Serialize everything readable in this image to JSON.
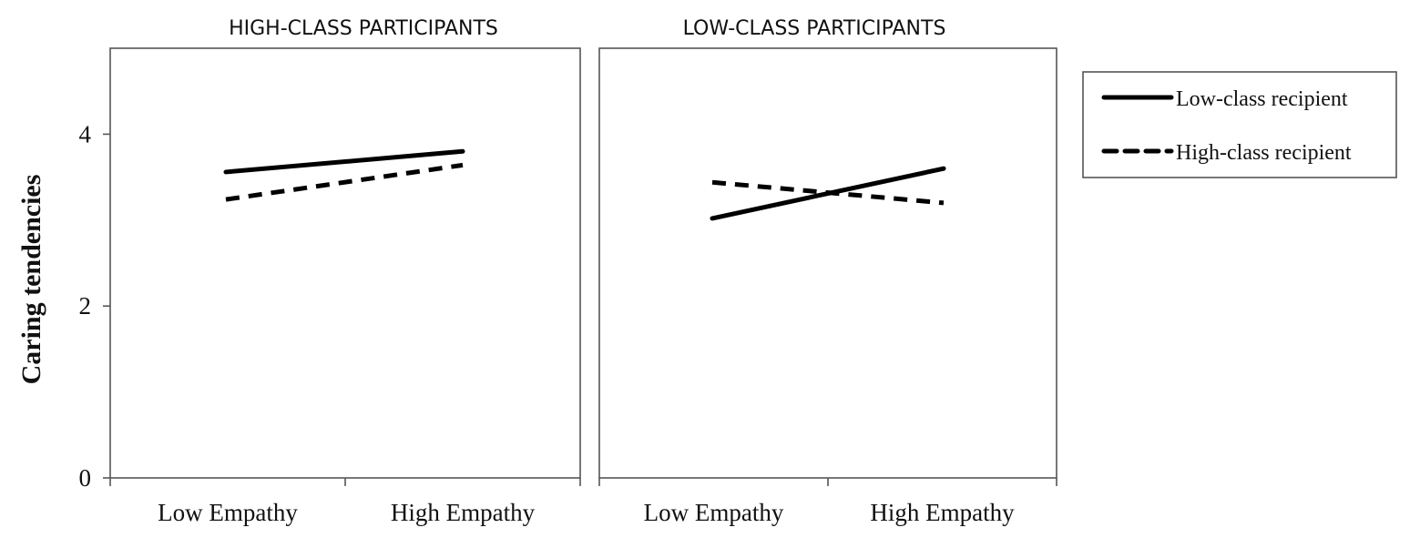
{
  "chart_data": {
    "type": "line",
    "ylabel": "Caring tendencies",
    "ylim": [
      0,
      5
    ],
    "yticks": [
      0,
      2,
      4
    ],
    "categories": [
      "Low Empathy",
      "High Empathy"
    ],
    "legend": {
      "placement": "right",
      "entries": [
        {
          "name": "Low-class recipient",
          "style": "solid"
        },
        {
          "name": "High-class recipient",
          "style": "dashed"
        }
      ]
    },
    "colors": {
      "line": "#000000",
      "frame": "#555555",
      "text": "#111111"
    },
    "panels": [
      {
        "title": "HIGH-CLASS PARTICIPANTS",
        "series": [
          {
            "name": "Low-class recipient",
            "style": "solid",
            "values": [
              3.56,
              3.8
            ]
          },
          {
            "name": "High-class recipient",
            "style": "dashed",
            "values": [
              3.24,
              3.64
            ]
          }
        ]
      },
      {
        "title": "LOW-CLASS PARTICIPANTS",
        "series": [
          {
            "name": "Low-class recipient",
            "style": "solid",
            "values": [
              3.02,
              3.6
            ]
          },
          {
            "name": "High-class recipient",
            "style": "dashed",
            "values": [
              3.44,
              3.2
            ]
          }
        ]
      }
    ]
  }
}
